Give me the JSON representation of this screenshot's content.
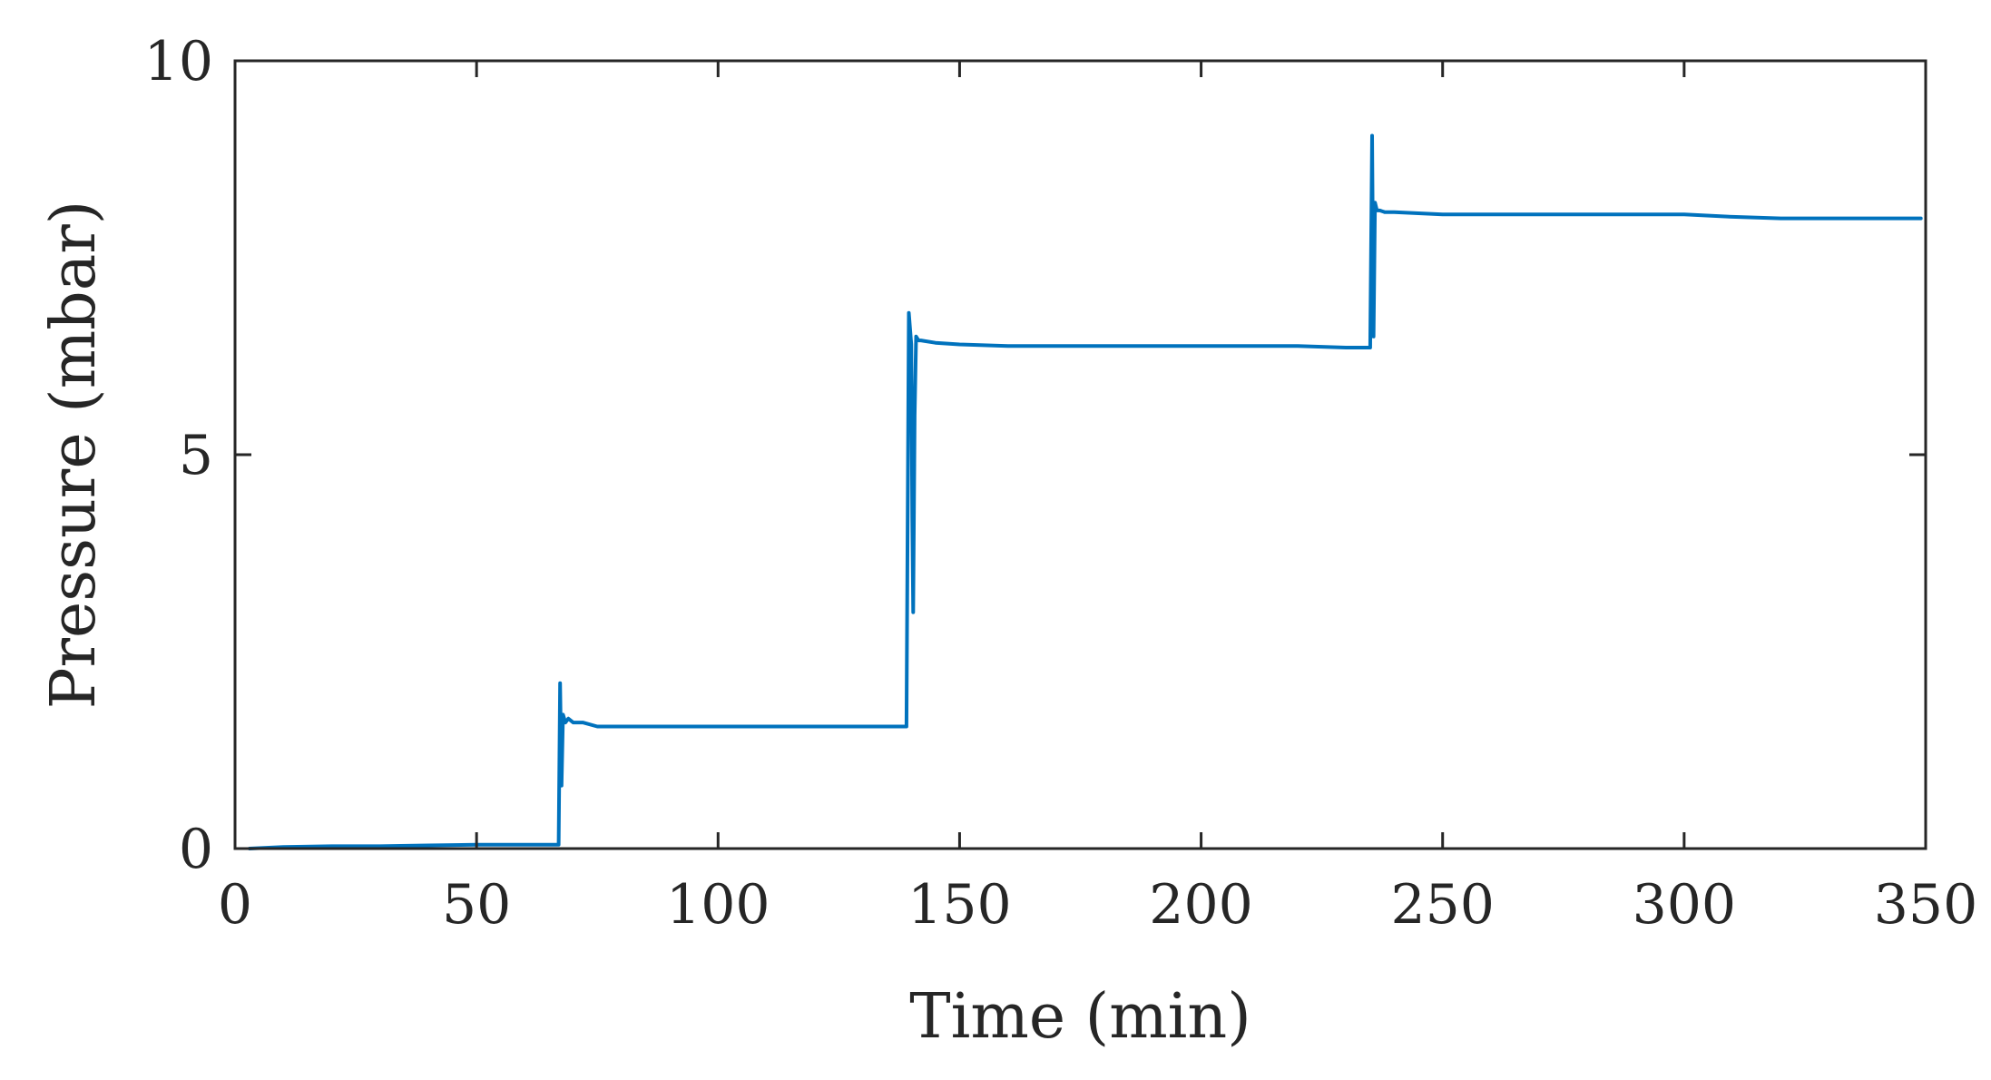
{
  "chart_data": {
    "type": "line",
    "title": "",
    "xlabel": "Time (min)",
    "ylabel": "Pressure (mbar)",
    "xlim": [
      0,
      350
    ],
    "ylim": [
      0,
      10
    ],
    "xticks": [
      "0",
      "50",
      "100",
      "150",
      "200",
      "250",
      "300",
      "350"
    ],
    "yticks": [
      "0",
      "5",
      "10"
    ],
    "grid": false,
    "legend": "none",
    "line_color": "#0072BD",
    "axis_color": "#262626",
    "series": [
      {
        "x": [
          3,
          10,
          20,
          30,
          40,
          50,
          55,
          60,
          67,
          67.3,
          67.6,
          67.9,
          68.4,
          69,
          70,
          72,
          75,
          80,
          90,
          100,
          110,
          120,
          130,
          139,
          139.5,
          140,
          140.2,
          140.4,
          140.7,
          141,
          141.5,
          142,
          145,
          150,
          160,
          170,
          180,
          190,
          200,
          210,
          220,
          230,
          235,
          235.4,
          235.7,
          236,
          236.4,
          237,
          238,
          240,
          250,
          260,
          270,
          280,
          290,
          300,
          310,
          320,
          330,
          340,
          349
        ],
        "y": [
          0.0,
          0.02,
          0.03,
          0.03,
          0.04,
          0.05,
          0.05,
          0.05,
          0.05,
          2.1,
          0.8,
          1.7,
          1.6,
          1.65,
          1.6,
          1.6,
          1.55,
          1.55,
          1.55,
          1.55,
          1.55,
          1.55,
          1.55,
          1.55,
          6.8,
          6.4,
          4.2,
          3.0,
          5.5,
          6.5,
          6.45,
          6.45,
          6.42,
          6.4,
          6.38,
          6.38,
          6.38,
          6.38,
          6.38,
          6.38,
          6.38,
          6.36,
          6.36,
          9.05,
          6.5,
          8.2,
          8.1,
          8.1,
          8.08,
          8.08,
          8.05,
          8.05,
          8.05,
          8.05,
          8.05,
          8.05,
          8.02,
          8.0,
          8.0,
          8.0,
          8.0
        ]
      }
    ]
  }
}
